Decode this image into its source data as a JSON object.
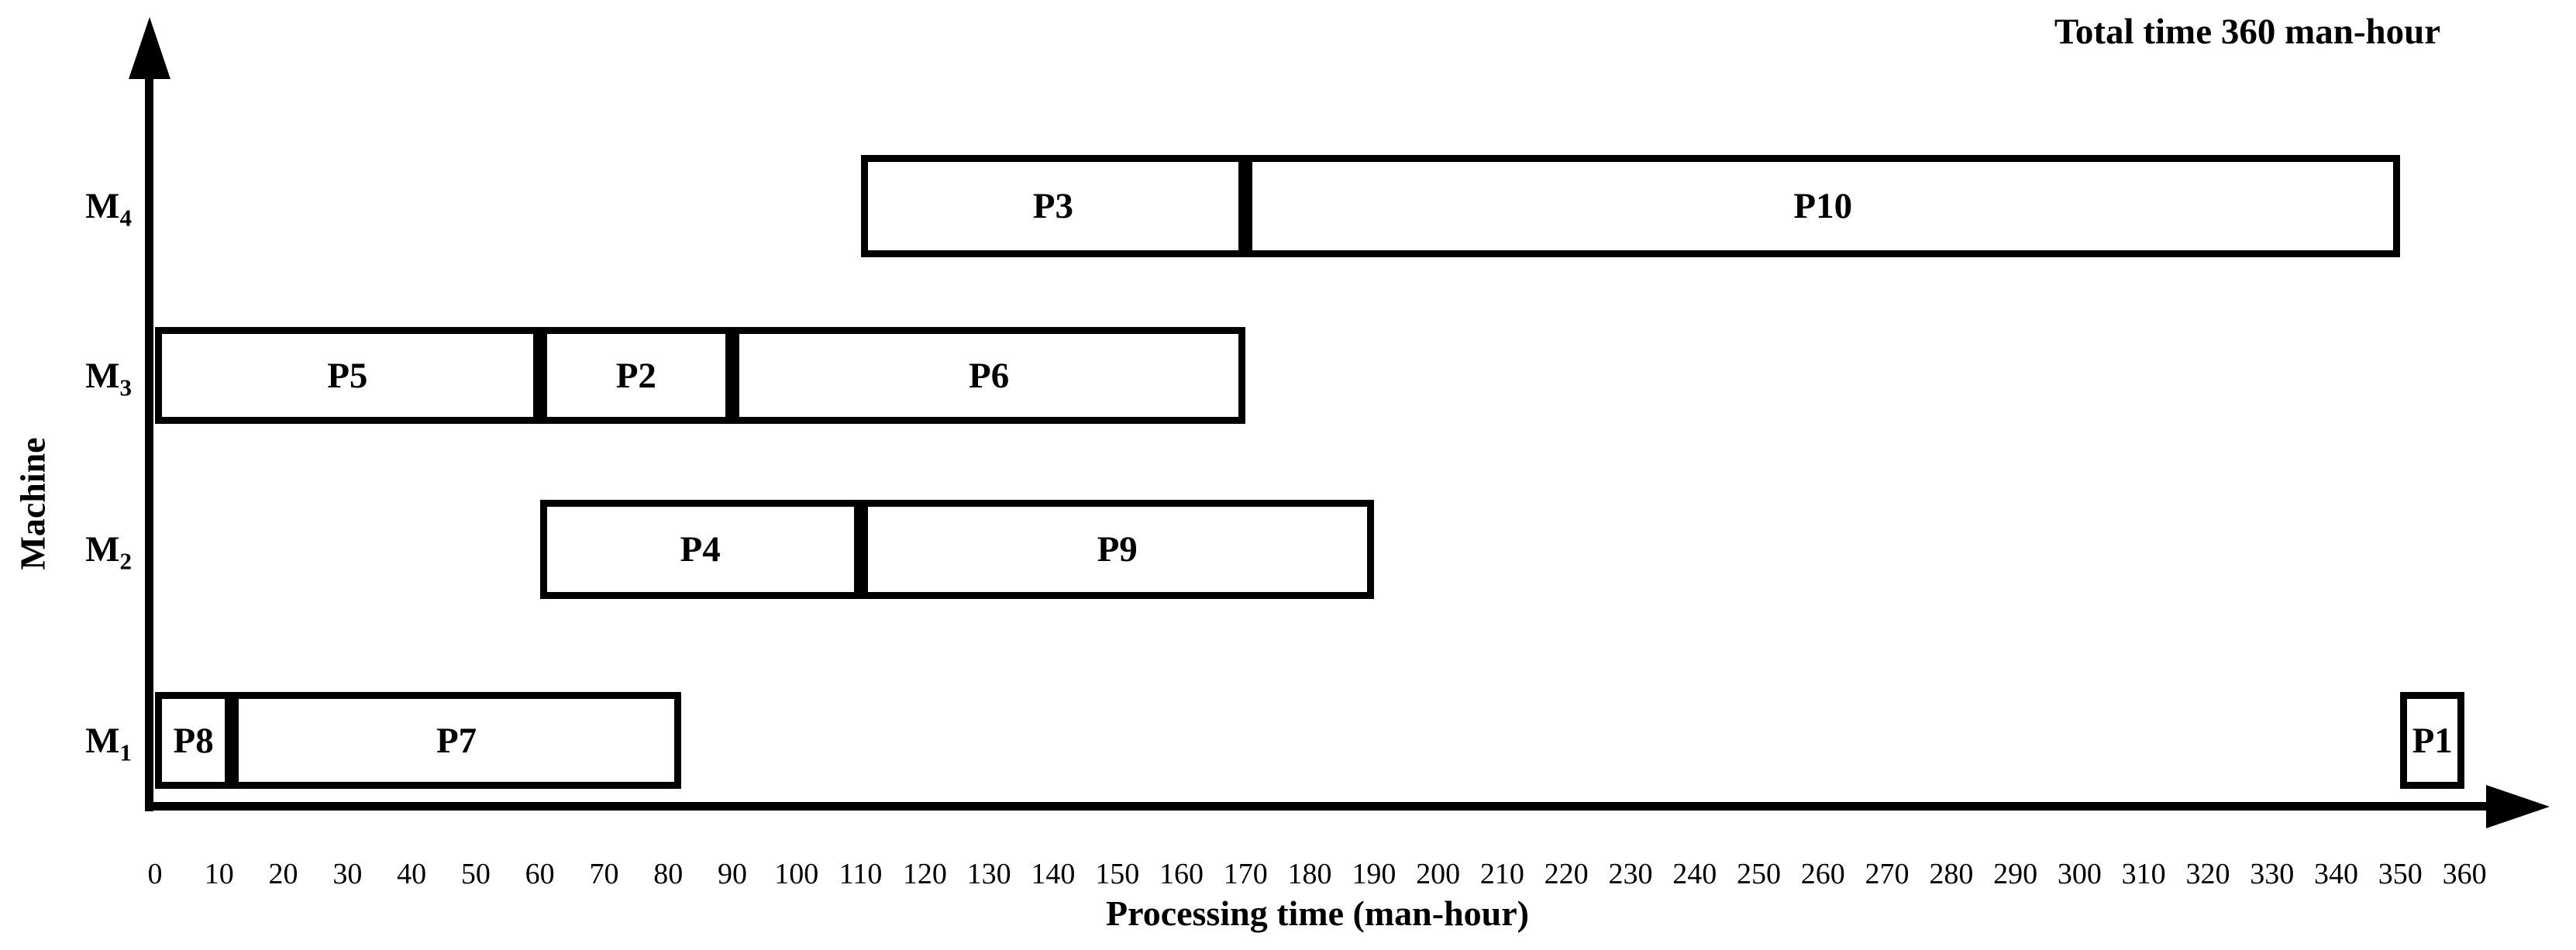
{
  "title": "Total time 360 man-hour",
  "x_axis": {
    "label": "Processing time (man-hour)",
    "ticks": [
      0,
      10,
      20,
      30,
      40,
      50,
      60,
      70,
      80,
      90,
      100,
      110,
      120,
      130,
      140,
      150,
      160,
      170,
      180,
      190,
      200,
      210,
      220,
      230,
      240,
      250,
      260,
      270,
      280,
      290,
      300,
      310,
      320,
      330,
      340,
      350,
      360
    ]
  },
  "y_axis": {
    "label": "Machine"
  },
  "chart_data": {
    "type": "gantt",
    "title": "Total time 360 man-hour",
    "xlabel": "Processing time (man-hour)",
    "ylabel": "Machine",
    "xlim": [
      0,
      360
    ],
    "x_tick_step": 10,
    "grid": false,
    "legend": false,
    "bar_fill": "#ffffff",
    "bar_border": "#000000",
    "makespan": 360,
    "rows": [
      {
        "machine_base": "M",
        "machine_sub": "4",
        "machine": "M4",
        "bars": [
          {
            "label": "P3",
            "start": 110,
            "end": 170,
            "duration": 60
          },
          {
            "label": "P10",
            "start": 170,
            "end": 350,
            "duration": 180
          }
        ]
      },
      {
        "machine_base": "M",
        "machine_sub": "3",
        "machine": "M3",
        "bars": [
          {
            "label": "P5",
            "start": 0,
            "end": 60,
            "duration": 60
          },
          {
            "label": "P2",
            "start": 60,
            "end": 90,
            "duration": 30
          },
          {
            "label": "P6",
            "start": 90,
            "end": 170,
            "duration": 80
          }
        ]
      },
      {
        "machine_base": "M",
        "machine_sub": "2",
        "machine": "M2",
        "bars": [
          {
            "label": "P4",
            "start": 60,
            "end": 110,
            "duration": 50
          },
          {
            "label": "P9",
            "start": 110,
            "end": 190,
            "duration": 80
          }
        ]
      },
      {
        "machine_base": "M",
        "machine_sub": "1",
        "machine": "M1",
        "bars": [
          {
            "label": "P8",
            "start": 0,
            "end": 12,
            "duration": 12
          },
          {
            "label": "P7",
            "start": 12,
            "end": 82,
            "duration": 70
          },
          {
            "label": "P1",
            "start": 350,
            "end": 360,
            "duration": 10
          }
        ]
      }
    ]
  }
}
